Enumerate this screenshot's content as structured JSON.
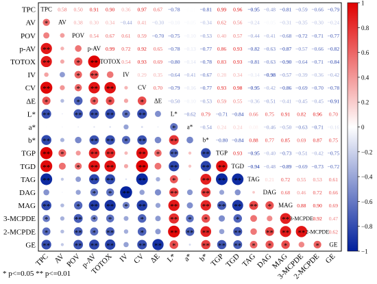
{
  "chart_data": {
    "type": "heatmap",
    "subtype": "correlation-matrix",
    "variables": [
      "TPC",
      "AV",
      "POV",
      "p-AV",
      "TOTOX",
      "IV",
      "CV",
      "ΔE",
      "L*",
      "a*",
      "b*",
      "TGP",
      "TGD",
      "TAG",
      "DAG",
      "MAG",
      "3-MCPDE",
      "2-MCPDE",
      "GE"
    ],
    "lower_triangle": "circles sized and colored by coefficient, stars mark significance",
    "upper_triangle": "coefficient values printed in color",
    "colorbar": {
      "min": -1,
      "max": 1,
      "ticks": [
        "1",
        "0.8",
        "0.6",
        "0.4",
        "0.2",
        "0",
        "−0.2",
        "−0.4",
        "−0.6",
        "−0.8",
        "−1"
      ],
      "colors": {
        "neg": "#001f9c",
        "mid": "#ffffff",
        "pos": "#e00000"
      }
    },
    "footnote": "* p<=0.05  ** p<=0.01",
    "matrix": [
      [
        1,
        0.58,
        0.5,
        0.91,
        0.9,
        0.36,
        0.97,
        0.67,
        -0.78,
        -0.01,
        -0.81,
        0.99,
        0.96,
        -0.95,
        -0.48,
        -0.81,
        -0.59,
        -0.66,
        -0.79
      ],
      [
        0.58,
        1,
        0.38,
        0.3,
        0.34,
        -0.44,
        0.41,
        -0.3,
        -0.1,
        -0.05,
        -0.34,
        0.62,
        0.56,
        -0.24,
        -0.05,
        -0.31,
        -0.35,
        -0.3,
        -0.24
      ],
      [
        0.5,
        0.38,
        1,
        0.54,
        0.67,
        0.61,
        0.59,
        -0.7,
        -0.75,
        -0.1,
        -0.53,
        0.4,
        0.57,
        -0.44,
        -0.41,
        -0.68,
        -0.72,
        -0.71,
        -0.77
      ],
      [
        0.91,
        0.3,
        0.54,
        1,
        0.99,
        0.72,
        0.92,
        0.65,
        -0.78,
        -0.13,
        -0.77,
        0.86,
        0.93,
        -0.82,
        -0.63,
        -0.87,
        -0.57,
        -0.66,
        -0.82
      ],
      [
        0.9,
        0.34,
        0.67,
        0.99,
        1,
        0.54,
        0.93,
        0.69,
        -0.8,
        -0.14,
        -0.78,
        0.83,
        0.93,
        -0.81,
        -0.63,
        -0.9,
        -0.64,
        -0.71,
        -0.84
      ],
      [
        0.36,
        -0.44,
        0.61,
        0.72,
        0.54,
        1,
        0.29,
        0.35,
        -0.64,
        -0.41,
        -0.67,
        0.28,
        0.34,
        -0.14,
        -0.98,
        -0.57,
        -0.39,
        -0.36,
        -0.42
      ],
      [
        0.97,
        0.41,
        0.59,
        0.92,
        0.93,
        0.29,
        1,
        0.7,
        -0.79,
        -0.16,
        -0.77,
        0.93,
        0.98,
        -0.95,
        -0.42,
        -0.86,
        -0.69,
        -0.7,
        -0.78
      ],
      [
        0.67,
        -0.3,
        -0.7,
        0.65,
        0.69,
        0.35,
        0.7,
        1,
        -0.5,
        -0.1,
        -0.53,
        0.59,
        0.55,
        -0.36,
        -0.51,
        -0.41,
        -0.45,
        -0.45,
        -0.91
      ],
      [
        -0.78,
        -0.1,
        -0.75,
        -0.78,
        -0.8,
        -0.64,
        -0.79,
        -0.5,
        1,
        -0.62,
        0.79,
        -0.71,
        -0.84,
        0.66,
        0.75,
        0.91,
        0.82,
        0.96,
        0.7
      ],
      [
        -0.01,
        -0.05,
        -0.1,
        -0.13,
        -0.14,
        -0.41,
        -0.16,
        -0.1,
        -0.62,
        1,
        -0.54,
        0.24,
        0.24,
        0.08,
        -0.46,
        -0.5,
        -0.63,
        -0.71,
        -0.16
      ],
      [
        -0.81,
        -0.34,
        -0.53,
        -0.77,
        -0.78,
        -0.67,
        -0.77,
        -0.53,
        0.79,
        -0.54,
        1,
        -0.8,
        -0.84,
        0.88,
        0.77,
        0.85,
        0.69,
        0.87,
        0.75
      ],
      [
        0.99,
        0.62,
        0.4,
        0.86,
        0.83,
        0.28,
        0.93,
        0.59,
        -0.71,
        0.24,
        -0.8,
        1,
        0.93,
        -0.95,
        -0.4,
        -0.73,
        -0.51,
        -0.42,
        -0.75
      ],
      [
        0.96,
        0.56,
        0.57,
        0.93,
        0.93,
        0.34,
        0.98,
        0.55,
        -0.84,
        0.24,
        -0.84,
        0.93,
        1,
        -0.94,
        -0.48,
        -0.89,
        -0.69,
        -0.73,
        -0.72
      ],
      [
        -0.95,
        -0.24,
        -0.44,
        -0.82,
        -0.81,
        -0.14,
        -0.95,
        -0.36,
        0.66,
        0.08,
        0.88,
        -0.95,
        -0.94,
        1,
        0.21,
        0.72,
        0.55,
        0.53,
        0.61
      ],
      [
        -0.48,
        -0.05,
        -0.41,
        -0.63,
        -0.63,
        -0.98,
        -0.42,
        -0.51,
        0.75,
        -0.46,
        0.77,
        -0.4,
        -0.48,
        0.21,
        1,
        0.68,
        0.46,
        0.72,
        0.66
      ],
      [
        -0.81,
        -0.31,
        -0.68,
        -0.87,
        -0.9,
        -0.57,
        -0.86,
        -0.41,
        0.91,
        -0.5,
        0.85,
        -0.73,
        -0.89,
        0.72,
        0.68,
        1,
        0.88,
        0.9,
        0.69
      ],
      [
        -0.59,
        -0.35,
        -0.72,
        -0.57,
        -0.64,
        -0.39,
        -0.69,
        -0.45,
        0.82,
        -0.63,
        0.69,
        -0.51,
        -0.69,
        0.55,
        0.46,
        0.88,
        1,
        0.92,
        0.47
      ],
      [
        -0.66,
        -0.3,
        -0.71,
        -0.66,
        -0.71,
        -0.36,
        -0.7,
        -0.45,
        0.96,
        -0.71,
        0.87,
        -0.42,
        -0.73,
        0.53,
        0.72,
        0.9,
        0.92,
        1,
        0.62
      ],
      [
        -0.79,
        -0.24,
        -0.77,
        -0.82,
        -0.84,
        -0.42,
        -0.78,
        -0.91,
        0.7,
        -0.16,
        0.75,
        -0.75,
        -0.72,
        0.61,
        0.66,
        0.69,
        0.47,
        0.62,
        1
      ]
    ]
  }
}
